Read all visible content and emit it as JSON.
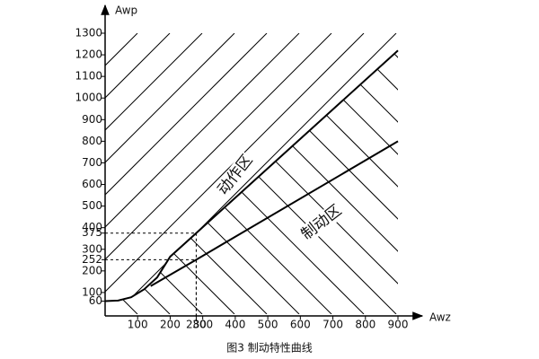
{
  "chart_data": {
    "type": "line",
    "caption": "图3  制动特性曲线",
    "x_label": "Awz",
    "y_label": "Awp",
    "annotations": [
      "动作区",
      "制动区"
    ],
    "series": [
      {
        "color": "#000000",
        "x": [
          0,
          40,
          80,
          120,
          160,
          200,
          280,
          900
        ],
        "values": [
          60,
          63,
          78,
          115,
          170,
          266,
          375,
          1220
        ]
      },
      {
        "color": "#000000",
        "x": [
          140,
          280,
          900
        ],
        "values": [
          130,
          252,
          800
        ]
      }
    ],
    "xlim": [
      0,
      900
    ],
    "ylim": [
      0,
      1300
    ],
    "xticks": [
      100,
      200,
      280,
      300,
      400,
      500,
      600,
      700,
      800,
      900
    ],
    "yticks": [
      60,
      100,
      200,
      252,
      300,
      375,
      400,
      500,
      600,
      700,
      800,
      900,
      1000,
      1100,
      1200,
      1300
    ],
    "guides": [
      375,
      252
    ]
  }
}
